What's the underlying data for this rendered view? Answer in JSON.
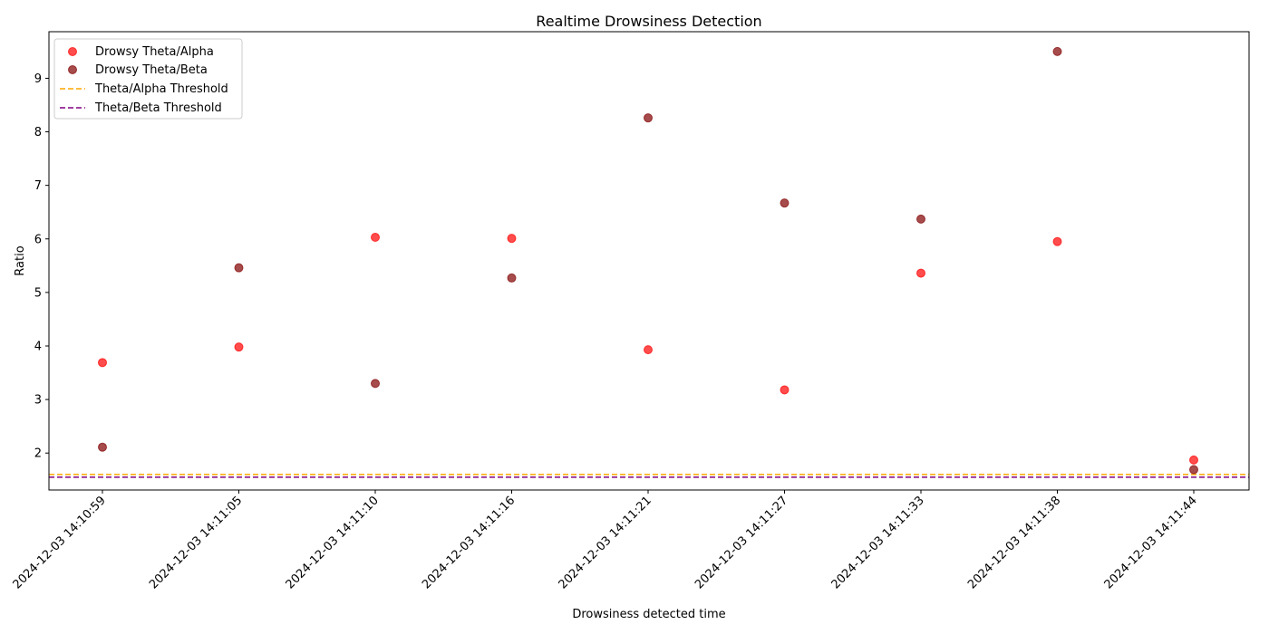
{
  "chart_data": {
    "type": "scatter",
    "title": "Realtime Drowsiness Detection",
    "xlabel": "Drowsiness detected time",
    "ylabel": "Ratio",
    "categories": [
      "2024-12-03 14:10:59",
      "2024-12-03 14:11:05",
      "2024-12-03 14:11:10",
      "2024-12-03 14:11:16",
      "2024-12-03 14:11:21",
      "2024-12-03 14:11:27",
      "2024-12-03 14:11:33",
      "2024-12-03 14:11:38",
      "2024-12-03 14:11:44"
    ],
    "ylim": [
      1.31,
      9.87
    ],
    "yticks": [
      2,
      3,
      4,
      5,
      6,
      7,
      8,
      9
    ],
    "grid": false,
    "legend_position": "top-left",
    "series": [
      {
        "name": "Drowsy Theta/Alpha",
        "kind": "scatter",
        "color": "#ff0000",
        "opacity": 0.7,
        "values": [
          3.69,
          3.98,
          6.03,
          6.01,
          3.93,
          3.18,
          5.36,
          5.95,
          1.87
        ]
      },
      {
        "name": "Drowsy Theta/Beta",
        "kind": "scatter",
        "color": "#800000",
        "opacity": 0.7,
        "values": [
          2.11,
          5.46,
          3.3,
          5.27,
          8.26,
          6.67,
          6.37,
          9.5,
          1.69
        ]
      }
    ],
    "thresholds": [
      {
        "name": "Theta/Alpha Threshold",
        "value": 1.6,
        "color": "#ffa500",
        "style": "dashed"
      },
      {
        "name": "Theta/Beta Threshold",
        "value": 1.55,
        "color": "#800080",
        "style": "dashed"
      }
    ]
  }
}
